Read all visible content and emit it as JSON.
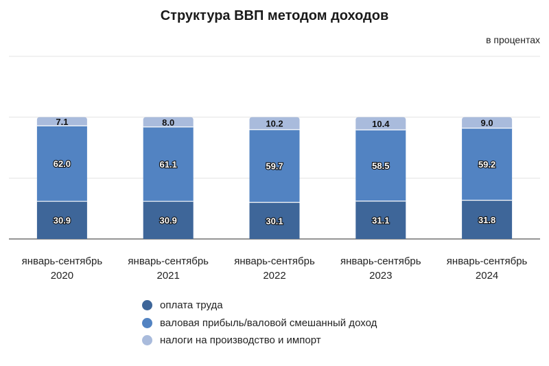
{
  "chart_data": {
    "type": "bar",
    "stacked": true,
    "title": "Структура ВВП методом доходов",
    "unit_label": "в процентах",
    "categories": [
      [
        "январь-сентябрь",
        "2020"
      ],
      [
        "январь-сентябрь",
        "2021"
      ],
      [
        "январь-сентябрь",
        "2022"
      ],
      [
        "январь-сентябрь",
        "2023"
      ],
      [
        "январь-сентябрь",
        "2024"
      ]
    ],
    "series": [
      {
        "name": "оплата труда",
        "color": "#3e6699",
        "values": [
          30.9,
          30.9,
          30.1,
          31.1,
          31.8
        ],
        "labels": [
          "30.9",
          "30.9",
          "30.1",
          "31.1",
          "31.8"
        ]
      },
      {
        "name": "валовая прибыль/валовой смешанный доход",
        "color": "#5283c2",
        "values": [
          62.0,
          61.1,
          59.7,
          58.5,
          59.2
        ],
        "labels": [
          "62.0",
          "61.1",
          "59.7",
          "58.5",
          "59.2"
        ]
      },
      {
        "name": "налоги на производство и импорт",
        "color": "#a9bbdc",
        "values": [
          7.1,
          8.0,
          10.2,
          10.4,
          9.0
        ],
        "labels": [
          "7.1",
          "8.0",
          "10.2",
          "10.4",
          "9.0"
        ]
      }
    ],
    "ylim": [
      0,
      150
    ],
    "gridlines": true,
    "y_tick_labels_visible": false,
    "legend_position": "bottom"
  }
}
